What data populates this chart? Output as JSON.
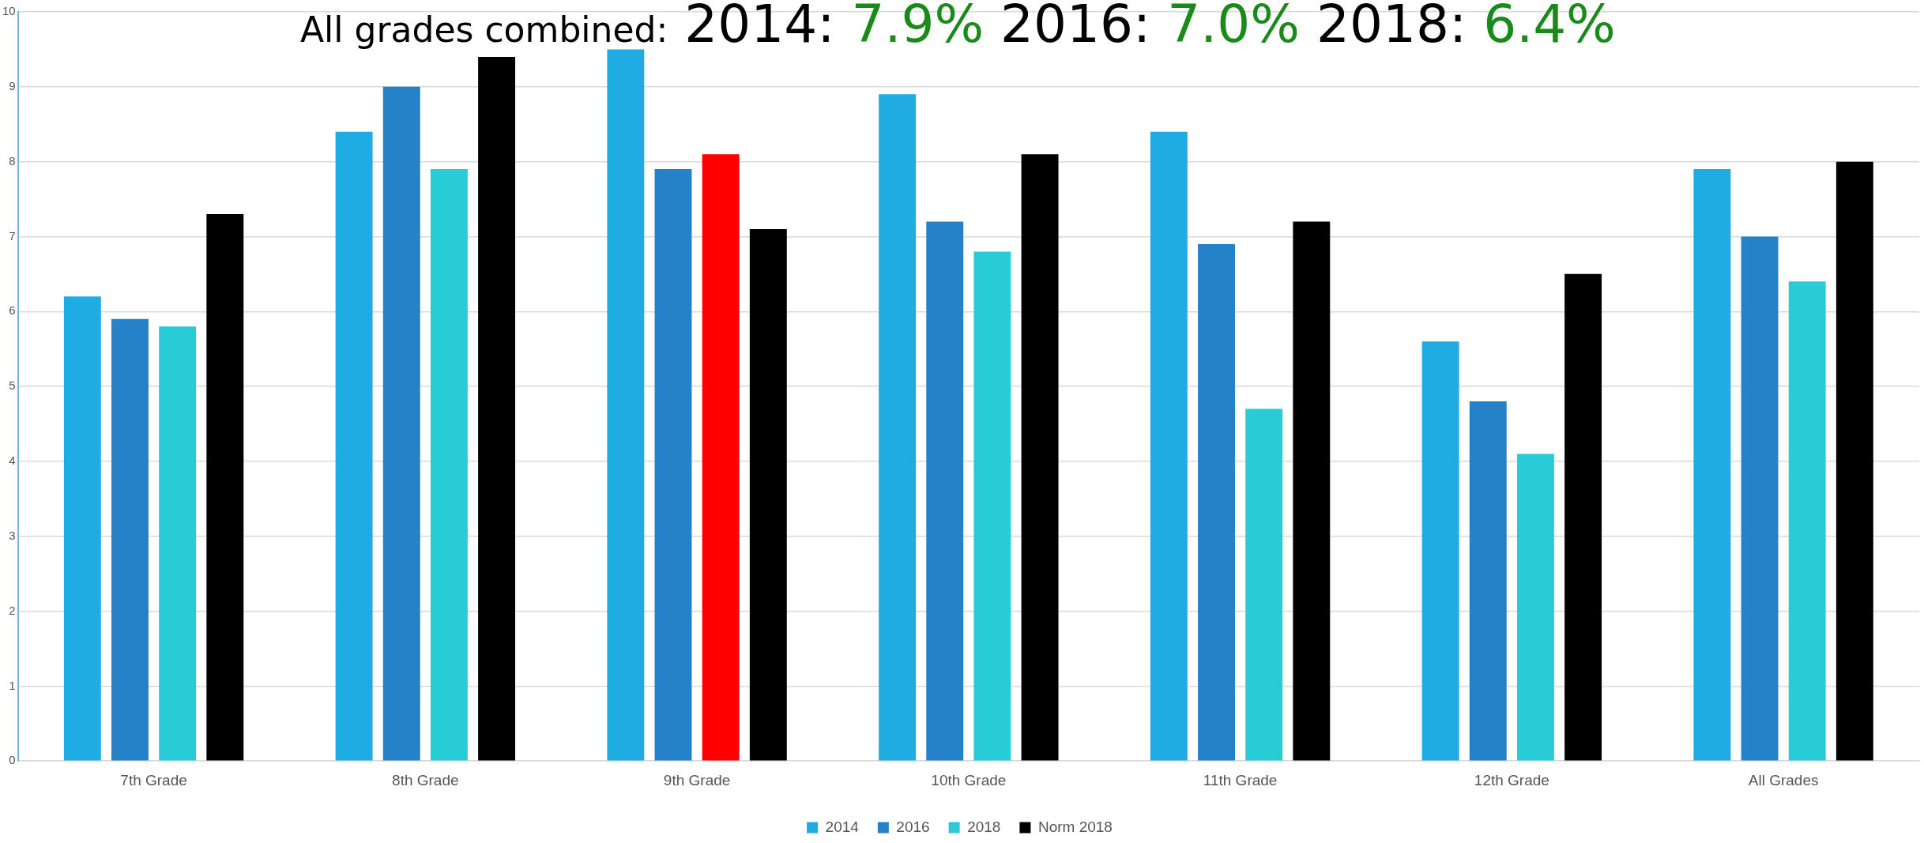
{
  "chart_data": {
    "type": "bar",
    "title": "All grades combined:  2014: 7.9%   2016: 7.0%   2018: 6.4%",
    "categories": [
      "7th Grade",
      "8th Grade",
      "9th Grade",
      "10th Grade",
      "11th Grade",
      "12th Grade",
      "All Grades"
    ],
    "series": [
      {
        "name": "2014",
        "color": "#1eace3",
        "values": [
          6.2,
          8.4,
          9.5,
          8.9,
          8.4,
          5.6,
          7.9
        ]
      },
      {
        "name": "2016",
        "color": "#2682c8",
        "values": [
          5.9,
          9.0,
          7.9,
          7.2,
          6.9,
          4.8,
          7.0
        ]
      },
      {
        "name": "2018",
        "color": "#28ccd6",
        "colors": [
          "#28ccd6",
          "#28ccd6",
          "#ff0000",
          "#28ccd6",
          "#28ccd6",
          "#28ccd6",
          "#28ccd6"
        ],
        "values": [
          5.8,
          7.9,
          8.1,
          6.8,
          4.7,
          4.1,
          6.4
        ]
      },
      {
        "name": "Norm 2018",
        "color": "#000000",
        "values": [
          7.3,
          9.4,
          7.1,
          8.1,
          7.2,
          6.5,
          8.0
        ]
      }
    ],
    "ylim": [
      0,
      10
    ],
    "yticks": [
      0,
      1,
      2,
      3,
      4,
      5,
      6,
      7,
      8,
      9,
      10
    ],
    "grid": "y",
    "legend": "bottom"
  }
}
